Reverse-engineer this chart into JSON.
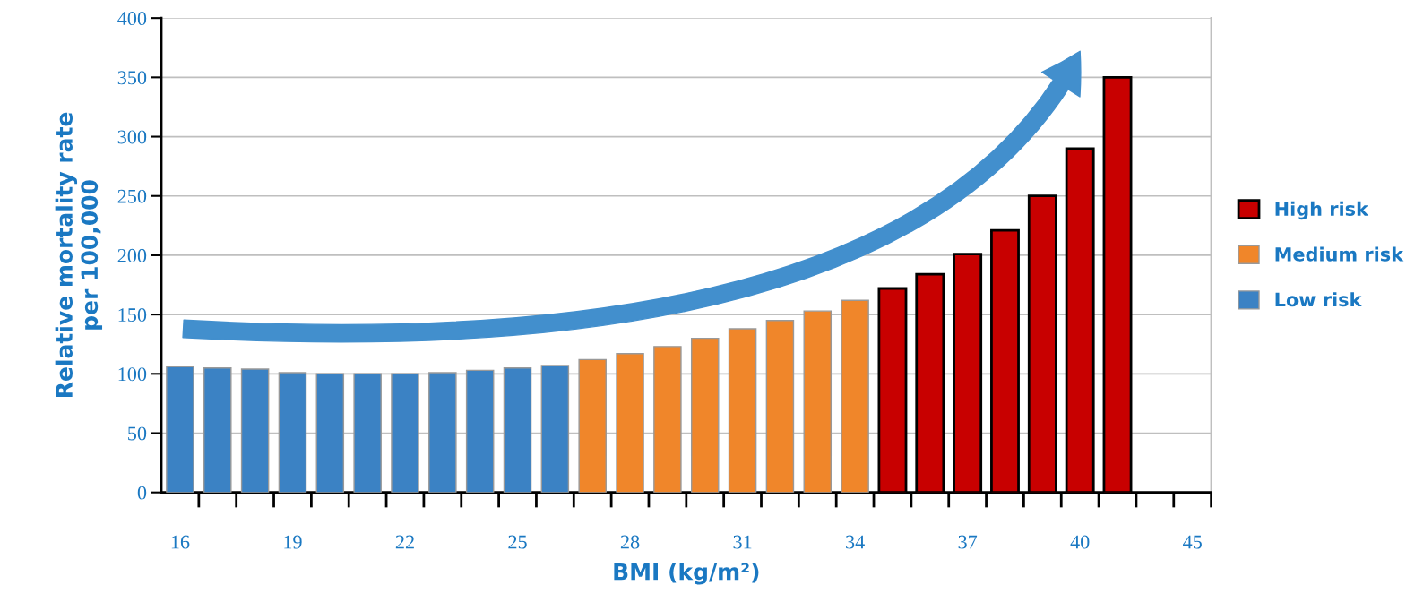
{
  "chart_data": {
    "type": "bar",
    "xlabel": "BMI (kg/m²)",
    "ylabel": "Relative mortality rate\nper 100,000",
    "categories": [
      "16",
      null,
      null,
      "19",
      null,
      null,
      "22",
      null,
      null,
      "25",
      null,
      null,
      "28",
      null,
      null,
      "31",
      null,
      null,
      "34",
      null,
      null,
      "37",
      null,
      null,
      "40",
      null,
      null,
      "45"
    ],
    "series": [
      {
        "name": "High risk",
        "color": "#c80000",
        "values": [
          null,
          null,
          null,
          null,
          null,
          null,
          null,
          null,
          null,
          null,
          null,
          null,
          null,
          null,
          null,
          null,
          null,
          null,
          null,
          172,
          184,
          201,
          221,
          250,
          290,
          350,
          null,
          null
        ]
      },
      {
        "name": "Medium risk",
        "color": "#f0862a",
        "values": [
          null,
          null,
          null,
          null,
          null,
          null,
          null,
          null,
          null,
          null,
          null,
          112,
          117,
          123,
          130,
          138,
          145,
          153,
          162,
          null,
          null,
          null,
          null,
          null,
          null,
          null,
          null,
          null
        ]
      },
      {
        "name": "Low risk",
        "color": "#3b82c4",
        "values": [
          106,
          105,
          104,
          101,
          100,
          100,
          100,
          101,
          103,
          105,
          107,
          null,
          null,
          null,
          null,
          null,
          null,
          null,
          null,
          null,
          null,
          null,
          null,
          null,
          null,
          null,
          null,
          null
        ]
      }
    ],
    "ylim": [
      0,
      400
    ],
    "yticks": [
      0,
      50,
      100,
      150,
      200,
      250,
      300,
      350,
      400
    ],
    "grid": "y",
    "legend": "right"
  }
}
